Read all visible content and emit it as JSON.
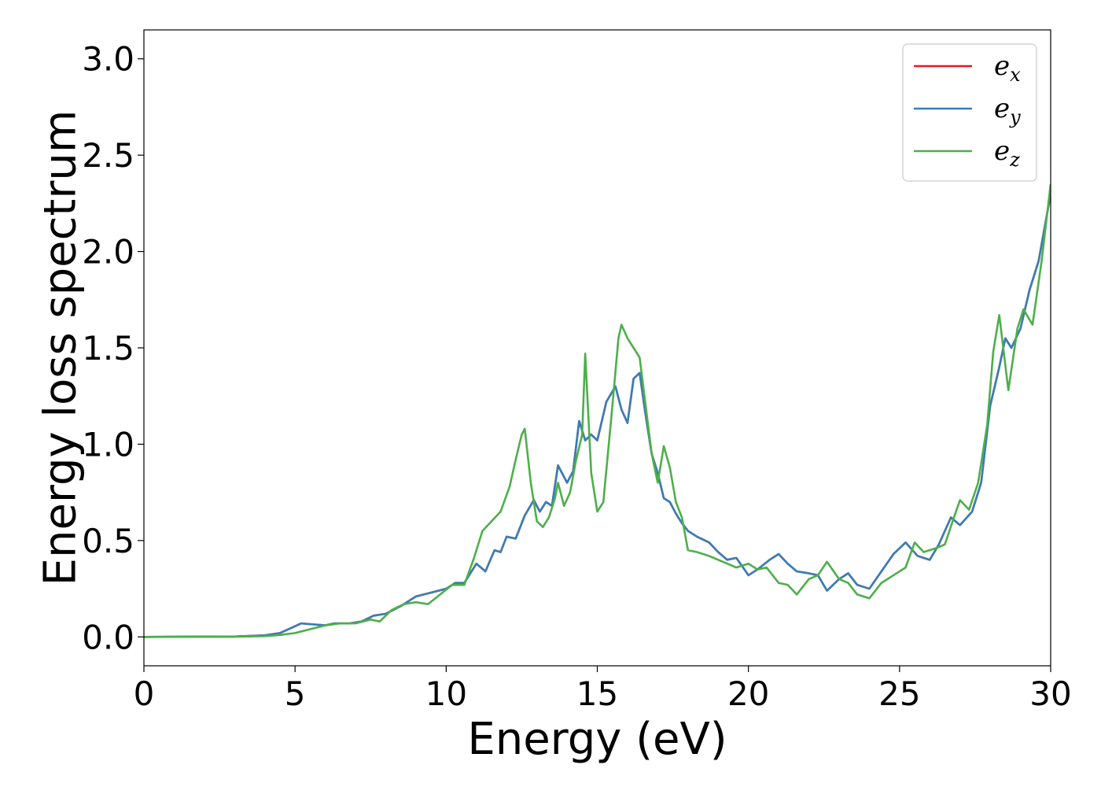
{
  "chart_data": {
    "type": "line",
    "title": "",
    "xlabel": "Energy (eV)",
    "ylabel": "Energy loss spectrum",
    "xlim": [
      0,
      30
    ],
    "ylim": [
      -0.15,
      3.15
    ],
    "xticks": [
      "0",
      "5",
      "10",
      "15",
      "20",
      "25",
      "30"
    ],
    "yticks": [
      "0.0",
      "0.5",
      "1.0",
      "1.5",
      "2.0",
      "2.5",
      "3.0"
    ],
    "grid": false,
    "legend_position": "top-right",
    "legend": [
      {
        "base": "e",
        "sub": "x"
      },
      {
        "base": "e",
        "sub": "y"
      },
      {
        "base": "e",
        "sub": "z"
      }
    ],
    "series": [
      {
        "name": "e_x",
        "color": "#e41a1c",
        "points": [
          [
            0,
            0
          ],
          [
            3,
            0.002
          ],
          [
            4,
            0.008
          ],
          [
            4.5,
            0.02
          ],
          [
            5.2,
            0.07
          ],
          [
            5.6,
            0.065
          ],
          [
            6,
            0.06
          ],
          [
            6.3,
            0.07
          ],
          [
            6.8,
            0.07
          ],
          [
            7.2,
            0.08
          ],
          [
            7.6,
            0.11
          ],
          [
            8,
            0.12
          ],
          [
            8.5,
            0.16
          ],
          [
            9,
            0.21
          ],
          [
            9.5,
            0.23
          ],
          [
            10,
            0.25
          ],
          [
            10.3,
            0.28
          ],
          [
            10.6,
            0.28
          ],
          [
            10.8,
            0.33
          ],
          [
            11,
            0.38
          ],
          [
            11.3,
            0.34
          ],
          [
            11.6,
            0.45
          ],
          [
            11.8,
            0.44
          ],
          [
            12,
            0.52
          ],
          [
            12.3,
            0.51
          ],
          [
            12.6,
            0.63
          ],
          [
            12.9,
            0.71
          ],
          [
            13.1,
            0.65
          ],
          [
            13.3,
            0.7
          ],
          [
            13.5,
            0.68
          ],
          [
            13.7,
            0.89
          ],
          [
            14,
            0.8
          ],
          [
            14.2,
            0.86
          ],
          [
            14.4,
            1.12
          ],
          [
            14.6,
            1.02
          ],
          [
            14.8,
            1.05
          ],
          [
            15,
            1.02
          ],
          [
            15.3,
            1.22
          ],
          [
            15.6,
            1.3
          ],
          [
            15.8,
            1.18
          ],
          [
            16,
            1.11
          ],
          [
            16.2,
            1.34
          ],
          [
            16.4,
            1.37
          ],
          [
            16.6,
            1.15
          ],
          [
            16.8,
            0.95
          ],
          [
            17,
            0.85
          ],
          [
            17.2,
            0.72
          ],
          [
            17.4,
            0.7
          ],
          [
            17.6,
            0.64
          ],
          [
            17.8,
            0.59
          ],
          [
            18,
            0.55
          ],
          [
            18.3,
            0.52
          ],
          [
            18.7,
            0.49
          ],
          [
            19,
            0.44
          ],
          [
            19.3,
            0.4
          ],
          [
            19.6,
            0.41
          ],
          [
            20,
            0.32
          ],
          [
            20.3,
            0.35
          ],
          [
            20.7,
            0.4
          ],
          [
            21,
            0.43
          ],
          [
            21.3,
            0.38
          ],
          [
            21.6,
            0.34
          ],
          [
            22,
            0.33
          ],
          [
            22.3,
            0.32
          ],
          [
            22.6,
            0.24
          ],
          [
            23,
            0.3
          ],
          [
            23.3,
            0.33
          ],
          [
            23.6,
            0.27
          ],
          [
            24,
            0.25
          ],
          [
            24.4,
            0.34
          ],
          [
            24.8,
            0.43
          ],
          [
            25.2,
            0.49
          ],
          [
            25.6,
            0.42
          ],
          [
            26,
            0.4
          ],
          [
            26.3,
            0.48
          ],
          [
            26.7,
            0.62
          ],
          [
            27,
            0.58
          ],
          [
            27.4,
            0.65
          ],
          [
            27.7,
            0.8
          ],
          [
            28,
            1.2
          ],
          [
            28.3,
            1.4
          ],
          [
            28.5,
            1.55
          ],
          [
            28.7,
            1.5
          ],
          [
            29,
            1.6
          ],
          [
            29.3,
            1.8
          ],
          [
            29.6,
            1.95
          ],
          [
            30,
            2.3
          ]
        ]
      },
      {
        "name": "e_y",
        "color": "#377eb8",
        "points": [
          [
            0,
            0
          ],
          [
            3,
            0.002
          ],
          [
            4,
            0.008
          ],
          [
            4.5,
            0.02
          ],
          [
            5.2,
            0.07
          ],
          [
            5.6,
            0.065
          ],
          [
            6,
            0.06
          ],
          [
            6.3,
            0.07
          ],
          [
            6.8,
            0.07
          ],
          [
            7.2,
            0.08
          ],
          [
            7.6,
            0.11
          ],
          [
            8,
            0.12
          ],
          [
            8.5,
            0.16
          ],
          [
            9,
            0.21
          ],
          [
            9.5,
            0.23
          ],
          [
            10,
            0.25
          ],
          [
            10.3,
            0.28
          ],
          [
            10.6,
            0.28
          ],
          [
            10.8,
            0.33
          ],
          [
            11,
            0.38
          ],
          [
            11.3,
            0.34
          ],
          [
            11.6,
            0.45
          ],
          [
            11.8,
            0.44
          ],
          [
            12,
            0.52
          ],
          [
            12.3,
            0.51
          ],
          [
            12.6,
            0.63
          ],
          [
            12.9,
            0.71
          ],
          [
            13.1,
            0.65
          ],
          [
            13.3,
            0.7
          ],
          [
            13.5,
            0.68
          ],
          [
            13.7,
            0.89
          ],
          [
            14,
            0.8
          ],
          [
            14.2,
            0.86
          ],
          [
            14.4,
            1.12
          ],
          [
            14.6,
            1.02
          ],
          [
            14.8,
            1.05
          ],
          [
            15,
            1.02
          ],
          [
            15.3,
            1.22
          ],
          [
            15.6,
            1.3
          ],
          [
            15.8,
            1.18
          ],
          [
            16,
            1.11
          ],
          [
            16.2,
            1.34
          ],
          [
            16.4,
            1.37
          ],
          [
            16.6,
            1.15
          ],
          [
            16.8,
            0.95
          ],
          [
            17,
            0.85
          ],
          [
            17.2,
            0.72
          ],
          [
            17.4,
            0.7
          ],
          [
            17.6,
            0.64
          ],
          [
            17.8,
            0.59
          ],
          [
            18,
            0.55
          ],
          [
            18.3,
            0.52
          ],
          [
            18.7,
            0.49
          ],
          [
            19,
            0.44
          ],
          [
            19.3,
            0.4
          ],
          [
            19.6,
            0.41
          ],
          [
            20,
            0.32
          ],
          [
            20.3,
            0.35
          ],
          [
            20.7,
            0.4
          ],
          [
            21,
            0.43
          ],
          [
            21.3,
            0.38
          ],
          [
            21.6,
            0.34
          ],
          [
            22,
            0.33
          ],
          [
            22.3,
            0.32
          ],
          [
            22.6,
            0.24
          ],
          [
            23,
            0.3
          ],
          [
            23.3,
            0.33
          ],
          [
            23.6,
            0.27
          ],
          [
            24,
            0.25
          ],
          [
            24.4,
            0.34
          ],
          [
            24.8,
            0.43
          ],
          [
            25.2,
            0.49
          ],
          [
            25.6,
            0.42
          ],
          [
            26,
            0.4
          ],
          [
            26.3,
            0.48
          ],
          [
            26.7,
            0.62
          ],
          [
            27,
            0.58
          ],
          [
            27.4,
            0.65
          ],
          [
            27.7,
            0.8
          ],
          [
            28,
            1.2
          ],
          [
            28.3,
            1.4
          ],
          [
            28.5,
            1.55
          ],
          [
            28.7,
            1.5
          ],
          [
            29,
            1.6
          ],
          [
            29.3,
            1.8
          ],
          [
            29.6,
            1.95
          ],
          [
            30,
            2.3
          ]
        ]
      },
      {
        "name": "e_z",
        "color": "#4daf4a",
        "points": [
          [
            0,
            0
          ],
          [
            3,
            0.001
          ],
          [
            4,
            0.004
          ],
          [
            4.5,
            0.01
          ],
          [
            5,
            0.02
          ],
          [
            5.5,
            0.04
          ],
          [
            6,
            0.06
          ],
          [
            6.5,
            0.07
          ],
          [
            7,
            0.07
          ],
          [
            7.5,
            0.09
          ],
          [
            7.8,
            0.08
          ],
          [
            8.2,
            0.14
          ],
          [
            8.6,
            0.17
          ],
          [
            9,
            0.18
          ],
          [
            9.4,
            0.17
          ],
          [
            9.8,
            0.22
          ],
          [
            10.2,
            0.27
          ],
          [
            10.6,
            0.27
          ],
          [
            10.9,
            0.4
          ],
          [
            11.2,
            0.55
          ],
          [
            11.5,
            0.6
          ],
          [
            11.8,
            0.65
          ],
          [
            12.1,
            0.78
          ],
          [
            12.3,
            0.92
          ],
          [
            12.5,
            1.05
          ],
          [
            12.6,
            1.08
          ],
          [
            12.8,
            0.8
          ],
          [
            13,
            0.6
          ],
          [
            13.2,
            0.57
          ],
          [
            13.4,
            0.62
          ],
          [
            13.6,
            0.72
          ],
          [
            13.7,
            0.8
          ],
          [
            13.9,
            0.68
          ],
          [
            14.1,
            0.75
          ],
          [
            14.3,
            0.92
          ],
          [
            14.5,
            1.05
          ],
          [
            14.6,
            1.47
          ],
          [
            14.8,
            0.85
          ],
          [
            15,
            0.65
          ],
          [
            15.2,
            0.7
          ],
          [
            15.5,
            1.2
          ],
          [
            15.7,
            1.55
          ],
          [
            15.8,
            1.62
          ],
          [
            16,
            1.55
          ],
          [
            16.2,
            1.5
          ],
          [
            16.4,
            1.45
          ],
          [
            16.6,
            1.2
          ],
          [
            16.8,
            0.95
          ],
          [
            17,
            0.8
          ],
          [
            17.2,
            0.99
          ],
          [
            17.4,
            0.88
          ],
          [
            17.6,
            0.7
          ],
          [
            17.8,
            0.62
          ],
          [
            18,
            0.45
          ],
          [
            18.3,
            0.44
          ],
          [
            18.7,
            0.42
          ],
          [
            19,
            0.4
          ],
          [
            19.3,
            0.38
          ],
          [
            19.6,
            0.36
          ],
          [
            20,
            0.38
          ],
          [
            20.3,
            0.35
          ],
          [
            20.6,
            0.36
          ],
          [
            21,
            0.28
          ],
          [
            21.3,
            0.27
          ],
          [
            21.6,
            0.22
          ],
          [
            22,
            0.3
          ],
          [
            22.3,
            0.32
          ],
          [
            22.6,
            0.39
          ],
          [
            23,
            0.3
          ],
          [
            23.3,
            0.28
          ],
          [
            23.6,
            0.22
          ],
          [
            24,
            0.2
          ],
          [
            24.4,
            0.28
          ],
          [
            24.8,
            0.32
          ],
          [
            25.2,
            0.36
          ],
          [
            25.5,
            0.49
          ],
          [
            25.8,
            0.44
          ],
          [
            26.2,
            0.46
          ],
          [
            26.5,
            0.48
          ],
          [
            26.8,
            0.62
          ],
          [
            27,
            0.71
          ],
          [
            27.3,
            0.66
          ],
          [
            27.6,
            0.8
          ],
          [
            27.9,
            1.1
          ],
          [
            28.1,
            1.48
          ],
          [
            28.3,
            1.67
          ],
          [
            28.6,
            1.28
          ],
          [
            28.9,
            1.6
          ],
          [
            29.1,
            1.7
          ],
          [
            29.4,
            1.62
          ],
          [
            29.7,
            1.95
          ],
          [
            30,
            2.35
          ]
        ]
      }
    ]
  }
}
